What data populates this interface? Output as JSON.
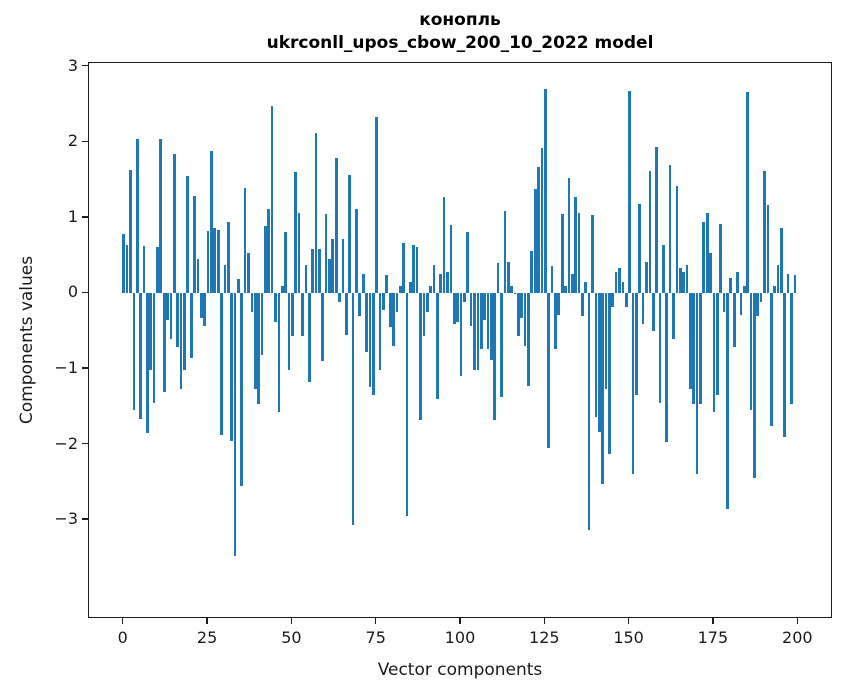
{
  "figure": {
    "title": "конопль",
    "subtitle": "ukrconll_upos_cbow_200_10_2022 model"
  },
  "chart_data": {
    "type": "bar",
    "title": "конопль",
    "subtitle": "ukrconll_upos_cbow_200_10_2022 model",
    "xlabel": "Vector components",
    "ylabel": "Components values",
    "legend": null,
    "grid": false,
    "bar_color": "#1f77b4",
    "n_components": 200,
    "xlim": [
      -10.3,
      210.3
    ],
    "ylim": [
      -4.31,
      3.05
    ],
    "x_ticks": [
      0,
      25,
      50,
      75,
      100,
      125,
      150,
      175,
      200
    ],
    "x_tick_labels": [
      "0",
      "25",
      "50",
      "75",
      "100",
      "125",
      "150",
      "175",
      "200"
    ],
    "y_ticks": [
      3,
      2,
      1,
      0,
      -1,
      -2,
      -3
    ],
    "y_tick_labels": [
      "3",
      "2",
      "1",
      "0",
      "−1",
      "−2",
      "−3"
    ],
    "bar_width_units": 0.8,
    "values": [
      0.78,
      0.64,
      1.63,
      -1.55,
      2.04,
      -1.66,
      0.63,
      -1.85,
      -1.02,
      -1.45,
      0.61,
      2.04,
      -1.31,
      -0.35,
      -0.6,
      1.84,
      -0.71,
      -1.26,
      -1.02,
      1.55,
      -0.85,
      1.29,
      0.45,
      -0.32,
      -0.43,
      0.82,
      1.88,
      0.87,
      0.84,
      -1.88,
      0.38,
      0.94,
      -1.95,
      -3.47,
      0.19,
      -2.55,
      1.4,
      0.54,
      -0.25,
      -1.26,
      -1.46,
      -0.82,
      0.89,
      1.12,
      2.48,
      -0.38,
      -1.57,
      0.1,
      0.81,
      -1.02,
      -0.56,
      1.61,
      1.06,
      -0.57,
      0.37,
      -1.17,
      0.59,
      2.13,
      0.59,
      -0.89,
      1.05,
      0.45,
      0.72,
      1.79,
      -0.12,
      0.72,
      -0.55,
      1.57,
      -3.06,
      1.12,
      -0.3,
      0.26,
      -0.78,
      -1.24,
      -1.35,
      2.33,
      -1.02,
      -0.22,
      0.25,
      -0.45,
      -0.7,
      -0.25,
      0.1,
      0.67,
      -2.95,
      0.15,
      0.64,
      0.62,
      -1.68,
      -0.56,
      -0.25,
      0.1,
      0.38,
      -1.4,
      0.26,
      1.27,
      0.29,
      0.91,
      -0.4,
      -0.38,
      -1.09,
      -0.12,
      0.81,
      -0.43,
      -1.02,
      -1.02,
      -0.73,
      -0.35,
      -0.73,
      -0.88,
      -1.68,
      0.4,
      -1.37,
      1.09,
      0.42,
      0.1,
      0.01,
      -0.56,
      -0.32,
      -0.69,
      -1.23,
      0.56,
      1.38,
      1.67,
      1.93,
      2.71,
      -2.05,
      0.36,
      -0.74,
      -0.29,
      1.05,
      0.1,
      1.53,
      0.26,
      1.28,
      1.06,
      -0.3,
      0.15,
      -3.13,
      1.04,
      -1.64,
      -1.84,
      -2.52,
      -1.26,
      -2.12,
      -0.18,
      0.29,
      0.33,
      0.15,
      -0.18,
      2.68,
      -2.39,
      -1.35,
      1.19,
      -0.41,
      0.41,
      1.62,
      -0.5,
      1.94,
      -1.45,
      0.64,
      -1.97,
      1.7,
      -0.6,
      1.42,
      0.34,
      0.28,
      0.37,
      -1.26,
      -1.46,
      -2.39,
      -1.46,
      0.94,
      1.06,
      0.54,
      -1.57,
      -1.35,
      0.92,
      -0.25,
      -2.85,
      0.21,
      -0.71,
      0.28,
      -0.29,
      0.1,
      2.66,
      -1.55,
      -2.45,
      -0.3,
      -0.12,
      1.62,
      1.17,
      -1.75,
      0.1,
      0.37,
      0.86,
      -1.9,
      0.26,
      -1.46,
      0.25
    ]
  }
}
